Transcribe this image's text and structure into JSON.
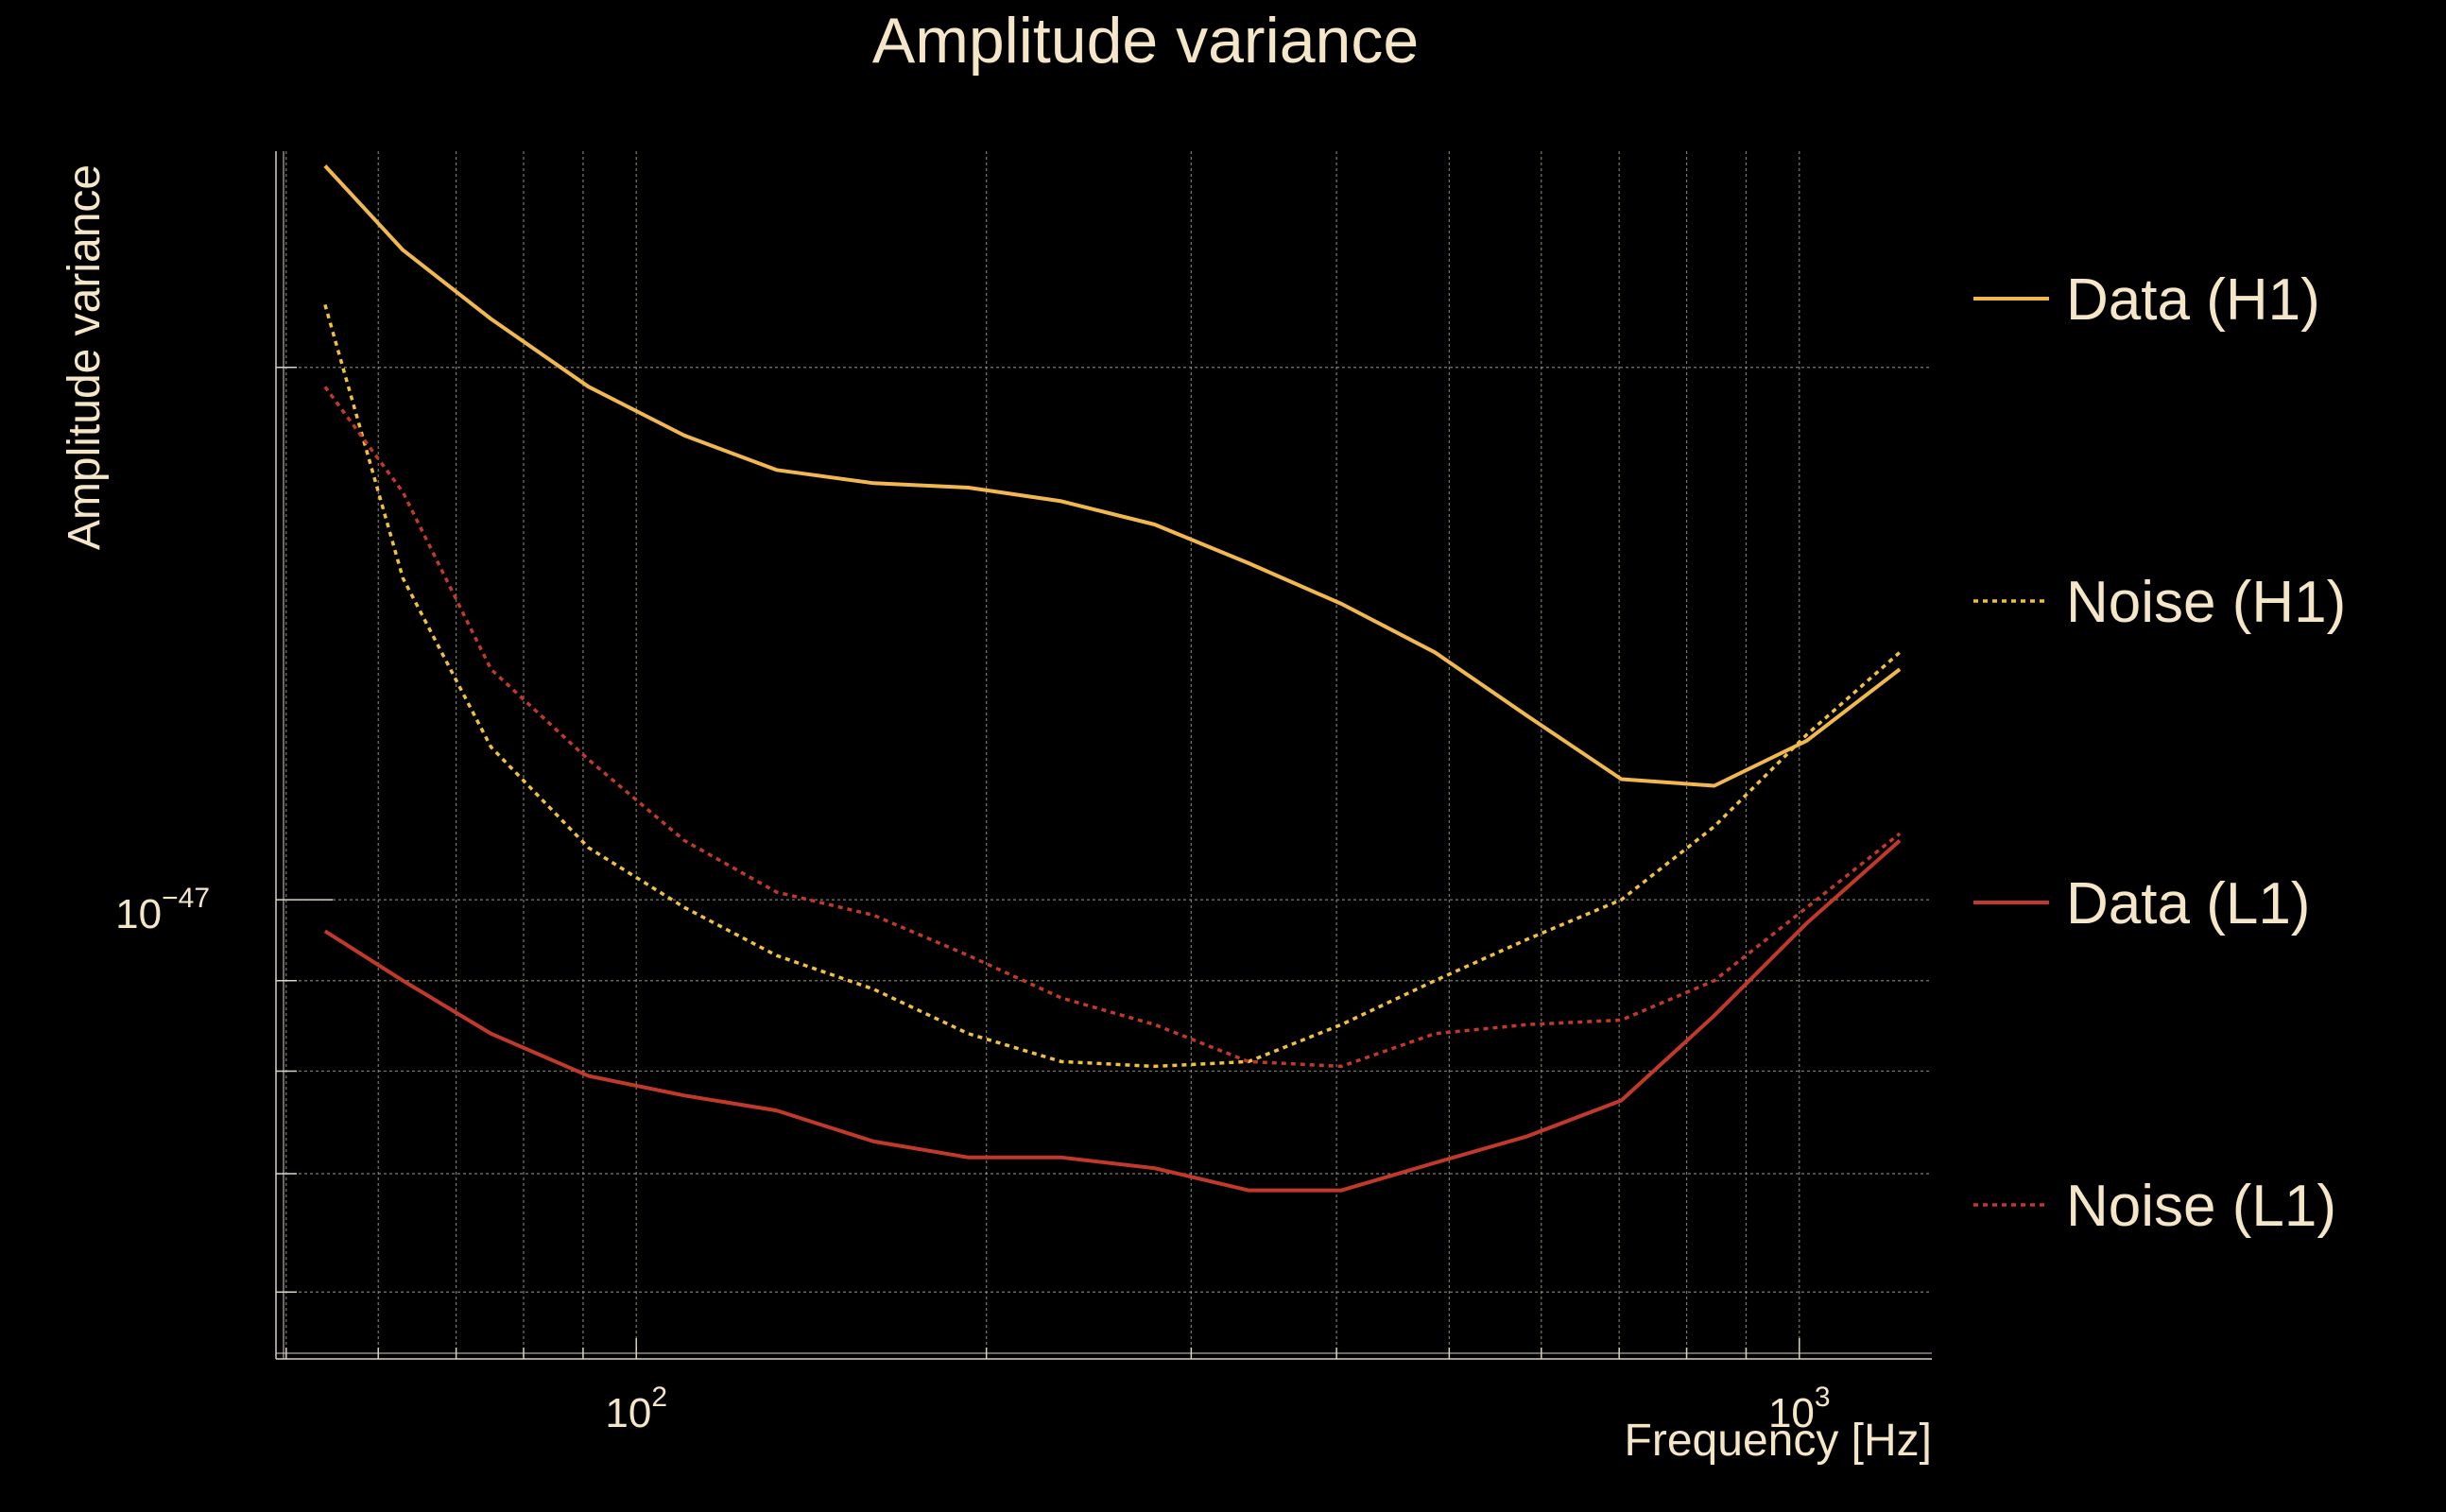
{
  "chart_data": {
    "type": "line",
    "title": "Amplitude variance",
    "xlabel": "Frequency [Hz]",
    "ylabel": "Amplitude variance",
    "xscale": "log",
    "yscale": "log",
    "xlim": [
      49,
      1300
    ],
    "ylim": [
      5.5e-48,
      2.65e-47
    ],
    "x_ticks": [
      {
        "value": 100,
        "base": "10",
        "exp": "2"
      },
      {
        "value": 1000,
        "base": "10",
        "exp": "3"
      }
    ],
    "y_ticks": [
      {
        "value": 1e-47,
        "base": "10",
        "exp": "−47"
      }
    ],
    "grid": true,
    "legend_position": "right",
    "x": [
      54,
      63,
      75,
      91,
      110,
      132,
      160,
      193,
      232,
      279,
      336,
      404,
      486,
      584,
      703,
      845,
      1015,
      1220
    ],
    "series": [
      {
        "name": "Data (H1)",
        "color": "#f0b84e",
        "dash": "solid",
        "values": [
          2.6e-47,
          2.33e-47,
          2.13e-47,
          1.95e-47,
          1.83e-47,
          1.75e-47,
          1.72e-47,
          1.71e-47,
          1.68e-47,
          1.63e-47,
          1.55e-47,
          1.47e-47,
          1.38e-47,
          1.27e-47,
          1.17e-47,
          1.16e-47,
          1.23e-47,
          1.35e-47
        ]
      },
      {
        "name": "Noise (H1)",
        "color": "#f0c040",
        "dash": "dotted",
        "values": [
          2.17e-47,
          1.52e-47,
          1.22e-47,
          1.07e-47,
          9.9e-48,
          9.3e-48,
          8.9e-48,
          8.4e-48,
          8.1e-48,
          8.05e-48,
          8.1e-48,
          8.5e-48,
          9e-48,
          9.5e-48,
          1e-47,
          1.1e-47,
          1.24e-47,
          1.38e-47
        ]
      },
      {
        "name": "Data (L1)",
        "color": "#c0392b",
        "dash": "solid",
        "values": [
          9.6e-48,
          9e-48,
          8.4e-48,
          7.95e-48,
          7.75e-48,
          7.6e-48,
          7.3e-48,
          7.15e-48,
          7.15e-48,
          7.05e-48,
          6.85e-48,
          6.85e-48,
          7.1e-48,
          7.35e-48,
          7.7e-48,
          8.6e-48,
          9.7e-48,
          1.08e-47
        ]
      },
      {
        "name": "Noise (L1)",
        "color": "#c0392b",
        "dash": "dotted",
        "values": [
          1.95e-47,
          1.7e-47,
          1.35e-47,
          1.2e-47,
          1.08e-47,
          1.01e-47,
          9.8e-48,
          9.3e-48,
          8.8e-48,
          8.5e-48,
          8.1e-48,
          8.05e-48,
          8.4e-48,
          8.5e-48,
          8.55e-48,
          9e-48,
          9.9e-48,
          1.09e-47
        ]
      }
    ]
  }
}
